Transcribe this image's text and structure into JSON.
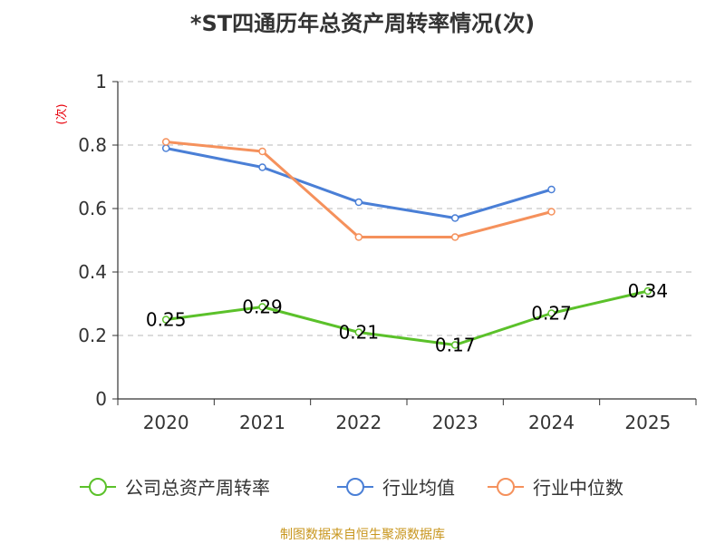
{
  "chart_data": {
    "type": "line",
    "title": "*ST四通历年总资产周转率情况(次)",
    "ylabel": "(次)",
    "xlabel": "",
    "categories": [
      "2020",
      "2021",
      "2022",
      "2023",
      "2024",
      "2025"
    ],
    "ylim": [
      0,
      1
    ],
    "yticks": [
      "0",
      "0.2",
      "0.4",
      "0.6",
      "0.8",
      "1"
    ],
    "ytick_values": [
      0,
      0.2,
      0.4,
      0.6,
      0.8,
      1
    ],
    "grid": true,
    "legend_position": "bottom",
    "series": [
      {
        "name": "公司总资产周转率",
        "color": "#5bc12a",
        "values": [
          0.25,
          0.29,
          0.21,
          0.17,
          0.27,
          0.34
        ],
        "labels": [
          "0.25",
          "0.29",
          "0.21",
          "0.17",
          "0.27",
          "0.34"
        ]
      },
      {
        "name": "行业均值",
        "color": "#4a7fd6",
        "values": [
          0.79,
          0.73,
          0.62,
          0.57,
          0.66,
          null
        ]
      },
      {
        "name": "行业中位数",
        "color": "#f5915c",
        "values": [
          0.81,
          0.78,
          0.51,
          0.51,
          0.59,
          null
        ]
      }
    ]
  },
  "source": "制图数据来自恒生聚源数据库"
}
